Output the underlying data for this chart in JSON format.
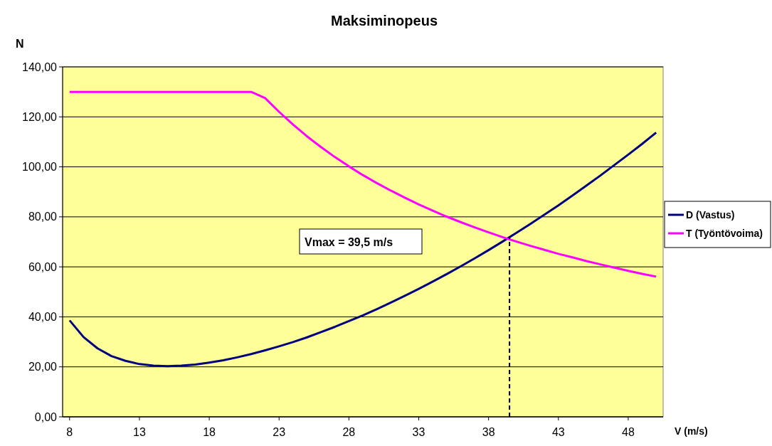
{
  "chart_data": {
    "type": "line",
    "title": "Maksiminopeus",
    "xlabel": "V (m/s)",
    "ylabel": "N",
    "x": [
      8,
      9,
      10,
      11,
      12,
      13,
      14,
      15,
      16,
      17,
      18,
      19,
      20,
      21,
      22,
      23,
      24,
      25,
      26,
      27,
      28,
      29,
      30,
      31,
      32,
      33,
      34,
      35,
      36,
      37,
      38,
      39,
      40,
      41,
      42,
      43,
      44,
      45,
      46,
      47,
      48,
      49,
      50
    ],
    "series": [
      {
        "name": "D (Vastus)",
        "color": "#000080",
        "values": [
          38.6,
          31.9,
          27.4,
          24.3,
          22.4,
          21.1,
          20.5,
          20.3,
          20.5,
          20.9,
          21.7,
          22.6,
          23.8,
          25.1,
          26.6,
          28.2,
          29.9,
          31.8,
          33.9,
          36.0,
          38.3,
          40.6,
          43.1,
          45.7,
          48.4,
          51.2,
          54.1,
          57.1,
          60.2,
          63.4,
          66.7,
          70.1,
          73.6,
          77.2,
          80.9,
          84.6,
          88.5,
          92.5,
          96.5,
          100.7,
          104.9,
          109.2,
          113.7
        ]
      },
      {
        "name": "T (Työntövoima)",
        "color": "#ff00ff",
        "values": [
          130,
          130,
          130,
          130,
          130,
          130,
          130,
          130,
          130,
          130,
          130,
          130,
          130,
          130,
          127.5,
          122.0,
          116.9,
          112.2,
          107.9,
          103.9,
          100.2,
          96.7,
          93.5,
          90.5,
          87.7,
          85.0,
          82.5,
          80.1,
          77.9,
          75.8,
          73.8,
          71.9,
          70.1,
          68.4,
          66.8,
          65.2,
          63.8,
          62.3,
          61.0,
          59.7,
          58.4,
          57.2,
          56.1
        ]
      }
    ],
    "xlim": [
      7.5,
      50.5
    ],
    "xticks": [
      8,
      13,
      18,
      23,
      28,
      33,
      38,
      43,
      48
    ],
    "ylim": [
      0,
      140
    ],
    "yticks": [
      {
        "value": 0,
        "label": "0,00"
      },
      {
        "value": 20,
        "label": "20,00"
      },
      {
        "value": 40,
        "label": "40,00"
      },
      {
        "value": 60,
        "label": "60,00"
      },
      {
        "value": 80,
        "label": "80,00"
      },
      {
        "value": 100,
        "label": "100,00"
      },
      {
        "value": 120,
        "label": "120,00"
      },
      {
        "value": 140,
        "label": "140,00"
      }
    ],
    "grid": "y",
    "legend": "right",
    "marker": "none",
    "line_style": "solid",
    "annotations": [
      "Vmax = 39,5 m/s"
    ],
    "ref_lines": [
      {
        "axis": "x",
        "value": 39.5,
        "line_style": "dashed",
        "color": "#000000"
      }
    ]
  }
}
